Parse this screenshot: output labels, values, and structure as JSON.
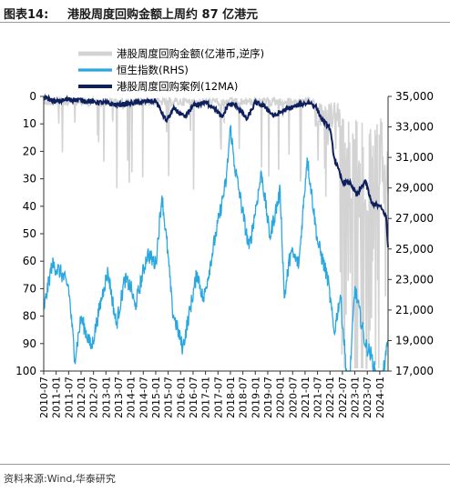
{
  "header": {
    "figure_label": "图表14:",
    "title": "港股周度回购金额上周约 87 亿港元"
  },
  "source": "资料来源:Wind,华泰研究",
  "colors": {
    "buyback": "#d3d3d3",
    "hsi": "#29a8e0",
    "ma": "#0d1f5c"
  },
  "chart_data": {
    "type": "line",
    "legend_position": "top",
    "series": [
      {
        "name": "港股周度回购金额(亿港币,逆序)",
        "axis": "left",
        "style": "line"
      },
      {
        "name": "恒生指数(RHS)",
        "axis": "right",
        "style": "line"
      },
      {
        "name": "港股周度回购案例(12MA)",
        "axis": "right",
        "style": "line"
      }
    ],
    "left_axis": {
      "min": 0,
      "max": 100,
      "reversed": true,
      "ticks": [
        0,
        10,
        20,
        30,
        40,
        50,
        60,
        70,
        80,
        90,
        100
      ]
    },
    "right_axis": {
      "min": 17000,
      "max": 35000,
      "ticks": [
        "35,000",
        "33,000",
        "31,000",
        "29,000",
        "27,000",
        "25,000",
        "23,000",
        "21,000",
        "19,000",
        "17,000"
      ]
    },
    "x_start": "2010-07",
    "x_end": "2024-05",
    "x_ticks": [
      "2010-07",
      "2011-01",
      "2011-07",
      "2012-01",
      "2012-07",
      "2013-01",
      "2013-07",
      "2014-01",
      "2014-07",
      "2015-01",
      "2015-07",
      "2016-01",
      "2016-07",
      "2017-01",
      "2017-07",
      "2018-01",
      "2018-07",
      "2019-01",
      "2019-07",
      "2020-01",
      "2020-07",
      "2021-01",
      "2021-07",
      "2022-01",
      "2022-07",
      "2023-01",
      "2023-07",
      "2024-01"
    ],
    "hsi_points": [
      [
        "2010-07",
        21000
      ],
      [
        "2010-11",
        24000
      ],
      [
        "2011-03",
        23500
      ],
      [
        "2011-07",
        22500
      ],
      [
        "2011-10",
        17800
      ],
      [
        "2012-01",
        20500
      ],
      [
        "2012-06",
        18500
      ],
      [
        "2012-12",
        22500
      ],
      [
        "2013-02",
        23500
      ],
      [
        "2013-06",
        20000
      ],
      [
        "2013-10",
        23000
      ],
      [
        "2014-01",
        22500
      ],
      [
        "2014-03",
        21200
      ],
      [
        "2014-09",
        24700
      ],
      [
        "2015-01",
        24000
      ],
      [
        "2015-04",
        28500
      ],
      [
        "2015-07",
        24500
      ],
      [
        "2015-09",
        21000
      ],
      [
        "2016-01",
        19000
      ],
      [
        "2016-02",
        18500
      ],
      [
        "2016-09",
        23500
      ],
      [
        "2016-12",
        21600
      ],
      [
        "2017-06",
        26000
      ],
      [
        "2017-11",
        29500
      ],
      [
        "2018-01",
        33000
      ],
      [
        "2018-03",
        30500
      ],
      [
        "2018-10",
        25000
      ],
      [
        "2019-04",
        30000
      ],
      [
        "2019-08",
        25800
      ],
      [
        "2020-01",
        28800
      ],
      [
        "2020-03",
        21800
      ],
      [
        "2020-06",
        24800
      ],
      [
        "2020-10",
        24000
      ],
      [
        "2021-02",
        31000
      ],
      [
        "2021-07",
        25500
      ],
      [
        "2021-12",
        23000
      ],
      [
        "2022-03",
        19500
      ],
      [
        "2022-06",
        22000
      ],
      [
        "2022-10",
        15200
      ],
      [
        "2023-01",
        22500
      ],
      [
        "2023-06",
        18800
      ],
      [
        "2023-09",
        18000
      ],
      [
        "2024-01",
        15500
      ],
      [
        "2024-04",
        18000
      ],
      [
        "2024-05",
        19000
      ]
    ],
    "ma_points": [
      [
        "2010-07",
        34950
      ],
      [
        "2011-01",
        34650
      ],
      [
        "2011-07",
        34800
      ],
      [
        "2012-01",
        34750
      ],
      [
        "2012-07",
        34650
      ],
      [
        "2013-01",
        34550
      ],
      [
        "2013-07",
        34450
      ],
      [
        "2014-01",
        34550
      ],
      [
        "2014-07",
        34650
      ],
      [
        "2015-01",
        34700
      ],
      [
        "2015-06",
        33400
      ],
      [
        "2015-10",
        34200
      ],
      [
        "2016-03",
        33600
      ],
      [
        "2016-07",
        34400
      ],
      [
        "2017-01",
        34600
      ],
      [
        "2017-05",
        34300
      ],
      [
        "2017-09",
        33600
      ],
      [
        "2017-12",
        34500
      ],
      [
        "2018-04",
        34400
      ],
      [
        "2018-09",
        33500
      ],
      [
        "2019-01",
        34600
      ],
      [
        "2019-06",
        34300
      ],
      [
        "2019-10",
        33700
      ],
      [
        "2020-03",
        34100
      ],
      [
        "2020-09",
        34400
      ],
      [
        "2021-01",
        34550
      ],
      [
        "2021-03",
        34600
      ],
      [
        "2021-06",
        34400
      ],
      [
        "2021-09",
        33500
      ],
      [
        "2022-01",
        32900
      ],
      [
        "2022-03",
        31000
      ],
      [
        "2022-07",
        29400
      ],
      [
        "2022-11",
        29300
      ],
      [
        "2023-02",
        28500
      ],
      [
        "2023-06",
        29500
      ],
      [
        "2023-09",
        28000
      ],
      [
        "2024-01",
        27800
      ],
      [
        "2024-04",
        27200
      ],
      [
        "2024-05",
        25100
      ]
    ]
  }
}
